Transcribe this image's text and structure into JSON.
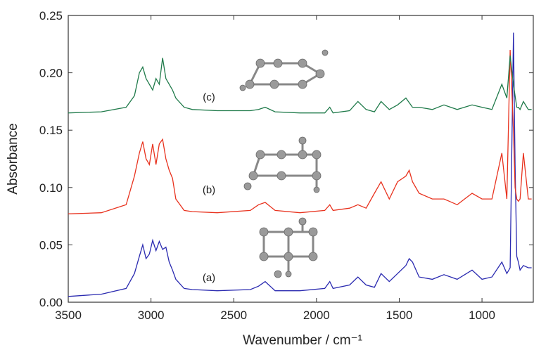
{
  "chart_data": {
    "type": "line",
    "x_label": "Wavenumber / cm⁻¹",
    "y_label": "Absorbance",
    "xlim": [
      3500,
      690
    ],
    "ylim": [
      0,
      0.25
    ],
    "xticks": [
      3500,
      3000,
      2500,
      2000,
      1500,
      1000
    ],
    "yticks": [
      {
        "value": 0,
        "label": "0.00"
      },
      {
        "value": 0.05,
        "label": "0.05"
      },
      {
        "value": 0.1,
        "label": "0.10"
      },
      {
        "value": 0.15,
        "label": "0.15"
      },
      {
        "value": 0.2,
        "label": "0.20"
      },
      {
        "value": 0.25,
        "label": "0.25"
      }
    ],
    "grid": false,
    "x": [
      3500,
      3300,
      3150,
      3100,
      3070,
      3050,
      3030,
      3010,
      2990,
      2970,
      2950,
      2930,
      2910,
      2890,
      2870,
      2850,
      2800,
      2750,
      2600,
      2400,
      2350,
      2310,
      2250,
      2100,
      1950,
      1920,
      1900,
      1800,
      1750,
      1700,
      1650,
      1610,
      1560,
      1510,
      1460,
      1440,
      1420,
      1380,
      1300,
      1230,
      1150,
      1060,
      1000,
      940,
      880,
      850,
      830,
      810,
      800,
      790,
      780,
      770,
      750,
      720,
      700
    ],
    "series": [
      {
        "name": "(a)",
        "color": "#2a2ab0",
        "values": [
          0.005,
          0.007,
          0.012,
          0.025,
          0.04,
          0.05,
          0.038,
          0.042,
          0.054,
          0.045,
          0.053,
          0.046,
          0.048,
          0.035,
          0.028,
          0.02,
          0.012,
          0.011,
          0.01,
          0.011,
          0.014,
          0.018,
          0.01,
          0.01,
          0.012,
          0.018,
          0.012,
          0.015,
          0.022,
          0.015,
          0.013,
          0.025,
          0.018,
          0.025,
          0.032,
          0.038,
          0.035,
          0.022,
          0.02,
          0.024,
          0.02,
          0.028,
          0.02,
          0.022,
          0.035,
          0.025,
          0.03,
          0.235,
          0.12,
          0.04,
          0.035,
          0.028,
          0.032,
          0.03,
          0.03
        ]
      },
      {
        "name": "(b)",
        "color": "#e8321e",
        "values": [
          0.077,
          0.078,
          0.085,
          0.11,
          0.13,
          0.14,
          0.125,
          0.12,
          0.138,
          0.12,
          0.138,
          0.142,
          0.125,
          0.115,
          0.108,
          0.09,
          0.08,
          0.079,
          0.078,
          0.08,
          0.085,
          0.087,
          0.08,
          0.078,
          0.08,
          0.085,
          0.08,
          0.082,
          0.085,
          0.082,
          0.095,
          0.105,
          0.09,
          0.105,
          0.11,
          0.115,
          0.105,
          0.095,
          0.09,
          0.09,
          0.085,
          0.095,
          0.09,
          0.09,
          0.13,
          0.09,
          0.22,
          0.15,
          0.1,
          0.09,
          0.088,
          0.09,
          0.13,
          0.09,
          0.09
        ]
      },
      {
        "name": "(c)",
        "color": "#1f7a4a",
        "values": [
          0.165,
          0.166,
          0.17,
          0.18,
          0.2,
          0.205,
          0.195,
          0.19,
          0.185,
          0.195,
          0.19,
          0.213,
          0.195,
          0.19,
          0.185,
          0.178,
          0.17,
          0.168,
          0.167,
          0.167,
          0.168,
          0.17,
          0.166,
          0.165,
          0.165,
          0.17,
          0.165,
          0.167,
          0.175,
          0.168,
          0.166,
          0.175,
          0.168,
          0.172,
          0.178,
          0.174,
          0.17,
          0.17,
          0.168,
          0.172,
          0.168,
          0.172,
          0.17,
          0.168,
          0.19,
          0.178,
          0.215,
          0.19,
          0.18,
          0.17,
          0.17,
          0.168,
          0.175,
          0.168,
          0.168
        ]
      }
    ]
  }
}
